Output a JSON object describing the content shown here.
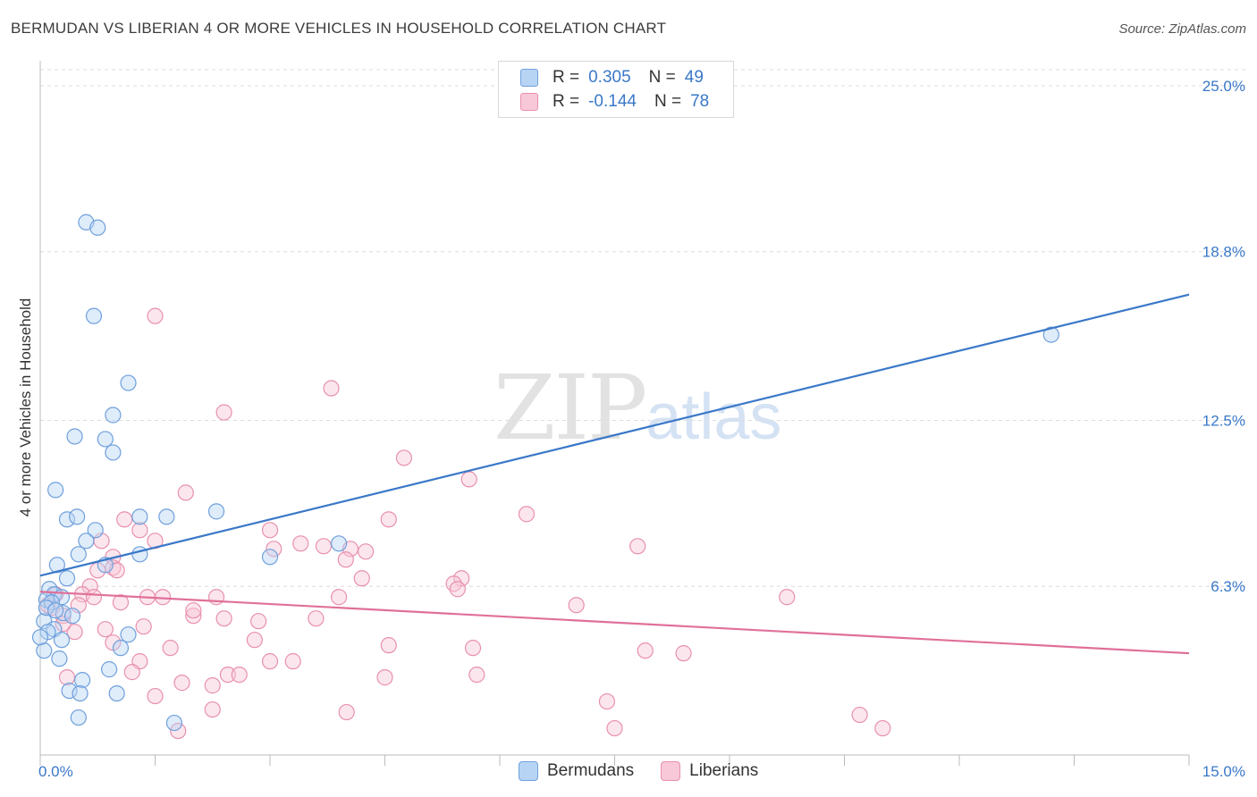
{
  "title": "BERMUDAN VS LIBERIAN 4 OR MORE VEHICLES IN HOUSEHOLD CORRELATION CHART",
  "source": "Source: ZipAtlas.com",
  "watermark": {
    "zip": "ZIP",
    "atlas": "atlas"
  },
  "legend": {
    "rows": [
      {
        "r_label": "R =",
        "r_value": "0.305",
        "n_label": "N =",
        "n_value": "49",
        "fill": "#b8d4f4",
        "stroke": "#6fa0dc"
      },
      {
        "r_label": "R =",
        "r_value": "-0.144",
        "n_label": "N =",
        "n_value": "78",
        "fill": "#f8c8d8",
        "stroke": "#e890ae"
      }
    ]
  },
  "bottom_legend": [
    {
      "label": "Bermudans",
      "fill": "#b8d4f4",
      "stroke": "#6fa0dc"
    },
    {
      "label": "Liberians",
      "fill": "#f8c8d8",
      "stroke": "#e890ae"
    }
  ],
  "chart_data": {
    "type": "scatter",
    "title": "BERMUDAN VS LIBERIAN 4 OR MORE VEHICLES IN HOUSEHOLD CORRELATION CHART",
    "xlabel": "",
    "ylabel": "4 or more Vehicles in Household",
    "xlim": [
      0,
      15
    ],
    "ylim": [
      0,
      25.6
    ],
    "x_tick_labels": [
      "0.0%",
      "15.0%"
    ],
    "y_ticks": [
      6.3,
      12.5,
      18.8,
      25.0
    ],
    "y_tick_labels": [
      "6.3%",
      "12.5%",
      "18.8%",
      "25.0%"
    ],
    "grid": true,
    "legend_position": "top-center",
    "series": [
      {
        "name": "Bermudans",
        "color": "#3a78c8",
        "fill": "#b8d4f4",
        "stroke": "#6fa0dc",
        "trend": {
          "x": [
            0,
            15
          ],
          "y": [
            6.7,
            17.2
          ]
        },
        "points": [
          [
            0.6,
            19.9
          ],
          [
            0.75,
            19.7
          ],
          [
            0.7,
            16.4
          ],
          [
            1.15,
            13.9
          ],
          [
            0.95,
            12.7
          ],
          [
            0.45,
            11.9
          ],
          [
            0.85,
            11.8
          ],
          [
            0.95,
            11.3
          ],
          [
            0.2,
            9.9
          ],
          [
            0.35,
            8.8
          ],
          [
            0.48,
            8.9
          ],
          [
            1.3,
            8.9
          ],
          [
            1.65,
            8.9
          ],
          [
            2.3,
            9.1
          ],
          [
            0.72,
            8.4
          ],
          [
            0.6,
            8.0
          ],
          [
            0.5,
            7.5
          ],
          [
            1.3,
            7.5
          ],
          [
            0.22,
            7.1
          ],
          [
            0.85,
            7.1
          ],
          [
            3.0,
            7.4
          ],
          [
            3.9,
            7.9
          ],
          [
            0.35,
            6.6
          ],
          [
            0.12,
            6.2
          ],
          [
            0.18,
            6.0
          ],
          [
            0.28,
            5.9
          ],
          [
            0.08,
            5.8
          ],
          [
            0.15,
            5.7
          ],
          [
            0.3,
            5.3
          ],
          [
            0.42,
            5.2
          ],
          [
            0.05,
            5.0
          ],
          [
            0.18,
            4.7
          ],
          [
            0.1,
            4.6
          ],
          [
            0.28,
            4.3
          ],
          [
            1.15,
            4.5
          ],
          [
            1.05,
            4.0
          ],
          [
            0.25,
            3.6
          ],
          [
            0.9,
            3.2
          ],
          [
            0.55,
            2.8
          ],
          [
            0.38,
            2.4
          ],
          [
            0.52,
            2.3
          ],
          [
            1.0,
            2.3
          ],
          [
            0.5,
            1.4
          ],
          [
            1.75,
            1.2
          ],
          [
            0.05,
            3.9
          ],
          [
            0.0,
            4.4
          ],
          [
            13.2,
            15.7
          ],
          [
            0.08,
            5.5
          ],
          [
            0.2,
            5.4
          ]
        ]
      },
      {
        "name": "Liberians",
        "color": "#e0709a",
        "fill": "#f8c8d8",
        "stroke": "#e890ae",
        "trend": {
          "x": [
            0,
            15
          ],
          "y": [
            6.1,
            3.8
          ]
        },
        "points": [
          [
            1.5,
            16.4
          ],
          [
            3.8,
            13.7
          ],
          [
            2.4,
            12.8
          ],
          [
            4.75,
            11.1
          ],
          [
            5.6,
            10.3
          ],
          [
            1.9,
            9.8
          ],
          [
            6.35,
            9.0
          ],
          [
            4.55,
            8.8
          ],
          [
            1.1,
            8.8
          ],
          [
            1.5,
            8.0
          ],
          [
            0.8,
            8.0
          ],
          [
            1.3,
            8.4
          ],
          [
            3.0,
            8.4
          ],
          [
            3.4,
            7.9
          ],
          [
            3.7,
            7.8
          ],
          [
            4.05,
            7.7
          ],
          [
            4.25,
            7.6
          ],
          [
            7.8,
            7.8
          ],
          [
            3.05,
            7.7
          ],
          [
            0.95,
            7.4
          ],
          [
            3.99,
            7.3
          ],
          [
            0.95,
            7.0
          ],
          [
            1.0,
            6.9
          ],
          [
            0.75,
            6.9
          ],
          [
            4.2,
            6.6
          ],
          [
            5.5,
            6.6
          ],
          [
            5.4,
            6.4
          ],
          [
            5.45,
            6.2
          ],
          [
            0.65,
            6.3
          ],
          [
            0.55,
            6.0
          ],
          [
            1.4,
            5.9
          ],
          [
            1.6,
            5.9
          ],
          [
            2.3,
            5.9
          ],
          [
            3.9,
            5.9
          ],
          [
            0.7,
            5.9
          ],
          [
            1.05,
            5.7
          ],
          [
            7.0,
            5.6
          ],
          [
            9.75,
            5.9
          ],
          [
            0.5,
            5.6
          ],
          [
            0.15,
            5.5
          ],
          [
            0.3,
            5.2
          ],
          [
            2.0,
            5.2
          ],
          [
            2.4,
            5.1
          ],
          [
            2.85,
            5.0
          ],
          [
            3.6,
            5.1
          ],
          [
            2.0,
            5.4
          ],
          [
            1.35,
            4.8
          ],
          [
            0.85,
            4.7
          ],
          [
            0.45,
            4.6
          ],
          [
            0.3,
            4.9
          ],
          [
            0.95,
            4.2
          ],
          [
            2.8,
            4.3
          ],
          [
            1.7,
            4.0
          ],
          [
            4.55,
            4.1
          ],
          [
            5.65,
            4.0
          ],
          [
            7.9,
            3.9
          ],
          [
            8.4,
            3.8
          ],
          [
            1.3,
            3.5
          ],
          [
            3.0,
            3.5
          ],
          [
            3.3,
            3.5
          ],
          [
            0.35,
            2.9
          ],
          [
            1.2,
            3.1
          ],
          [
            2.45,
            3.0
          ],
          [
            2.6,
            3.0
          ],
          [
            4.5,
            2.9
          ],
          [
            5.7,
            3.0
          ],
          [
            1.85,
            2.7
          ],
          [
            2.25,
            2.6
          ],
          [
            1.5,
            2.2
          ],
          [
            7.4,
            2.0
          ],
          [
            2.25,
            1.7
          ],
          [
            4.0,
            1.6
          ],
          [
            7.5,
            1.0
          ],
          [
            10.7,
            1.5
          ],
          [
            11.0,
            1.0
          ],
          [
            1.8,
            0.9
          ],
          [
            0.1,
            5.6
          ],
          [
            0.2,
            6.0
          ]
        ]
      }
    ]
  }
}
